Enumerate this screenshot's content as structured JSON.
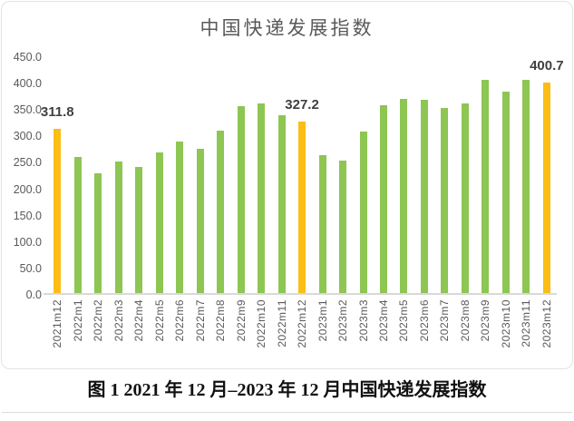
{
  "chart_data": {
    "type": "bar",
    "title": "中国快递发展指数",
    "categories": [
      "2021m12",
      "2022m1",
      "2022m2",
      "2022m3",
      "2022m4",
      "2022m5",
      "2022m6",
      "2022m7",
      "2022m8",
      "2022m9",
      "2022m10",
      "2022m11",
      "2022m12",
      "2023m1",
      "2023m2",
      "2023m3",
      "2023m4",
      "2023m5",
      "2023m6",
      "2023m7",
      "2023m8",
      "2023m9",
      "2023m10",
      "2023m11",
      "2023m12"
    ],
    "values": [
      311.8,
      259,
      228,
      250,
      241,
      268,
      288,
      275,
      310,
      355,
      360,
      339,
      327.2,
      263,
      253,
      308,
      357,
      370,
      367,
      352,
      360,
      405,
      383,
      405,
      400.7
    ],
    "data_labels": [
      "311.8",
      "",
      "",
      "",
      "",
      "",
      "",
      "",
      "",
      "",
      "",
      "",
      "327.2",
      "",
      "",
      "",
      "",
      "",
      "",
      "",
      "",
      "",
      "",
      "",
      "400.7"
    ],
    "highlight_indices": [
      0,
      12,
      24
    ],
    "yticks": [
      "450.0",
      "400.0",
      "350.0",
      "300.0",
      "250.0",
      "200.0",
      "150.0",
      "100.0",
      "50.0",
      "0.0"
    ],
    "ylim": [
      0,
      450
    ],
    "ytick_step": 50,
    "grid": false,
    "legend": "none",
    "colors": {
      "bar": "#8DC653",
      "highlight": "#FBBD16",
      "axis_text": "#595959",
      "label_text": "#404040",
      "baseline": "#D9D9D9"
    }
  },
  "caption": "图 1 2021 年 12 月–2023 年 12 月中国快递发展指数"
}
